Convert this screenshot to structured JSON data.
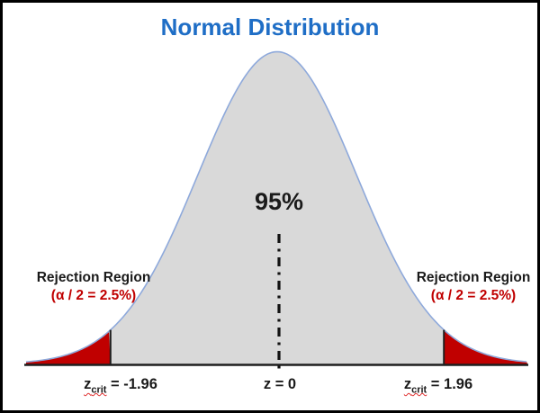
{
  "frame": {
    "background": "#ffffff",
    "border_color": "#000000"
  },
  "title": {
    "text": "Normal Distribution",
    "color": "#1f6ec6"
  },
  "chart_data": {
    "type": "area",
    "distribution": "normal",
    "title": "Normal Distribution",
    "xlabel": "z",
    "mean_z": 0,
    "std_z": 1,
    "z_range": [
      -3.5,
      3.5
    ],
    "confidence_region": {
      "from_z": -1.96,
      "to_z": 1.96,
      "area_pct": 95,
      "label": "95%"
    },
    "rejection_regions": [
      {
        "from_z": -3.5,
        "to_z": -1.96,
        "area_pct": 2.5,
        "label": "Rejection Region (α / 2 = 2.5%)"
      },
      {
        "from_z": 1.96,
        "to_z": 3.5,
        "area_pct": 2.5,
        "label": "Rejection Region (α / 2 = 2.5%)"
      }
    ],
    "z_crit": 1.96,
    "axis_ticks": [
      {
        "z": -1.96,
        "label": "z_crit = -1.96"
      },
      {
        "z": 0,
        "label": "z = 0"
      },
      {
        "z": 1.96,
        "label": "z_crit = 1.96"
      }
    ],
    "grid": false,
    "legend": false,
    "colors": {
      "curve_fill": "#d9d9d9",
      "curve_stroke": "#8ea9db",
      "rejection_fill": "#c00000",
      "axis": "#1f1f1f",
      "center_line": "#111111"
    }
  },
  "labels": {
    "center_pct": "95%",
    "left_rejection": {
      "line1": "Rejection Region",
      "line2": "(α / 2 = 2.5%)",
      "line2_color": "#c00000"
    },
    "right_rejection": {
      "line1": "Rejection Region",
      "line2": "(α / 2 = 2.5%)",
      "line2_color": "#c00000"
    },
    "axis": {
      "left": {
        "base": "z",
        "sub": "crit",
        "rest": " = -1.96"
      },
      "center": "z = 0",
      "right": {
        "base": "z",
        "sub": "crit",
        "rest": " = 1.96"
      }
    }
  }
}
